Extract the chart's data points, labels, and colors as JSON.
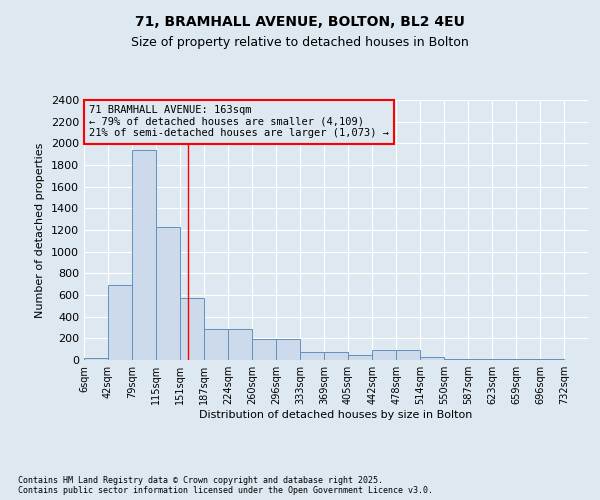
{
  "title1": "71, BRAMHALL AVENUE, BOLTON, BL2 4EU",
  "title2": "Size of property relative to detached houses in Bolton",
  "xlabel": "Distribution of detached houses by size in Bolton",
  "ylabel": "Number of detached properties",
  "annotation_line1": "71 BRAMHALL AVENUE: 163sqm",
  "annotation_line2": "← 79% of detached houses are smaller (4,109)",
  "annotation_line3": "21% of semi-detached houses are larger (1,073) →",
  "footer1": "Contains HM Land Registry data © Crown copyright and database right 2025.",
  "footer2": "Contains public sector information licensed under the Open Government Licence v3.0.",
  "bar_edges": [
    6,
    42,
    79,
    115,
    151,
    187,
    224,
    260,
    296,
    333,
    369,
    405,
    442,
    478,
    514,
    550,
    587,
    623,
    659,
    696,
    732
  ],
  "bar_heights": [
    15,
    690,
    1940,
    1230,
    570,
    290,
    290,
    195,
    195,
    75,
    75,
    50,
    95,
    95,
    25,
    8,
    5,
    5,
    5,
    5
  ],
  "bar_color": "#ccdaeb",
  "bar_edgecolor": "#6090c0",
  "red_line_x": 163,
  "ylim": [
    0,
    2400
  ],
  "yticks": [
    0,
    200,
    400,
    600,
    800,
    1000,
    1200,
    1400,
    1600,
    1800,
    2000,
    2200,
    2400
  ],
  "bg_color": "#dde8f0",
  "grid_color": "#ffffff",
  "title1_fontsize": 10,
  "title2_fontsize": 9
}
